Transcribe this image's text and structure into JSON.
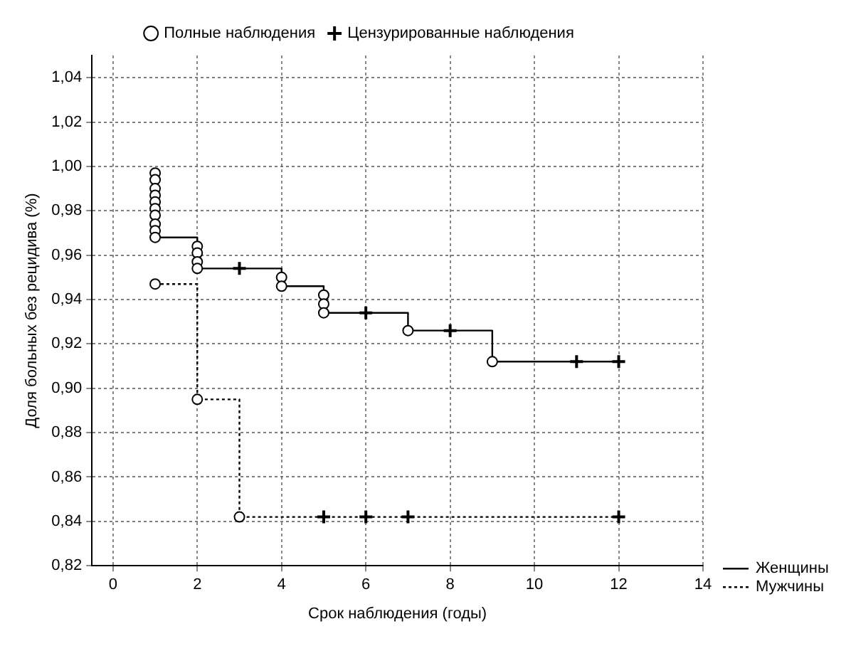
{
  "chart_data": {
    "type": "step",
    "xlabel": "Срок наблюдения (годы)",
    "ylabel": "Доля больных без рецидива (%)",
    "xlim": [
      -0.5,
      14
    ],
    "xticks": [
      0,
      2,
      4,
      6,
      8,
      10,
      12,
      14
    ],
    "ylim": [
      0.82,
      1.05
    ],
    "yticks": [
      {
        "value": 0.82,
        "label": "0,82"
      },
      {
        "value": 0.84,
        "label": "0,84"
      },
      {
        "value": 0.86,
        "label": "0,86"
      },
      {
        "value": 0.88,
        "label": "0,88"
      },
      {
        "value": 0.9,
        "label": "0,90"
      },
      {
        "value": 0.92,
        "label": "0,92"
      },
      {
        "value": 0.94,
        "label": "0,94"
      },
      {
        "value": 0.96,
        "label": "0,96"
      },
      {
        "value": 0.98,
        "label": "0,98"
      },
      {
        "value": 1.0,
        "label": "1,00"
      },
      {
        "value": 1.02,
        "label": "1,02"
      },
      {
        "value": 1.04,
        "label": "1,04"
      }
    ],
    "grid": true,
    "legend": "top",
    "series": [
      {
        "name": "Женщины",
        "color": "#000000",
        "line_style": "solid",
        "x": [
          1,
          2,
          3,
          4,
          5,
          6,
          7,
          8,
          9,
          11,
          12
        ],
        "values": [
          0.968,
          0.954,
          0.954,
          0.946,
          0.934,
          0.934,
          0.926,
          0.926,
          0.912,
          0.912,
          0.912
        ]
      },
      {
        "name": "Мужчины",
        "color": "#000000",
        "line_style": "dotted",
        "x": [
          1,
          2,
          3,
          5,
          6,
          7,
          12
        ],
        "values": [
          0.947,
          0.895,
          0.842,
          0.842,
          0.842,
          0.842,
          0.842
        ]
      },
      {
        "name": "Полные наблюдения",
        "type": "scatter",
        "color": "#000000",
        "marker": "circle",
        "x": [
          1,
          1,
          1,
          1,
          1,
          1,
          1,
          1,
          1,
          1,
          2,
          2,
          2,
          2,
          4,
          4,
          5,
          5,
          5,
          7,
          9,
          1,
          2,
          3
        ],
        "values": [
          0.997,
          0.994,
          0.99,
          0.987,
          0.984,
          0.981,
          0.978,
          0.974,
          0.971,
          0.968,
          0.964,
          0.961,
          0.957,
          0.954,
          0.95,
          0.946,
          0.942,
          0.938,
          0.934,
          0.926,
          0.912,
          0.947,
          0.895,
          0.842
        ]
      },
      {
        "name": "Цензурированные наблюдения",
        "type": "scatter",
        "color": "#000000",
        "marker": "cross",
        "x": [
          3,
          6,
          8,
          11,
          12,
          5,
          6,
          7,
          12
        ],
        "values": [
          0.954,
          0.934,
          0.926,
          0.912,
          0.912,
          0.842,
          0.842,
          0.842,
          0.842
        ]
      }
    ]
  }
}
